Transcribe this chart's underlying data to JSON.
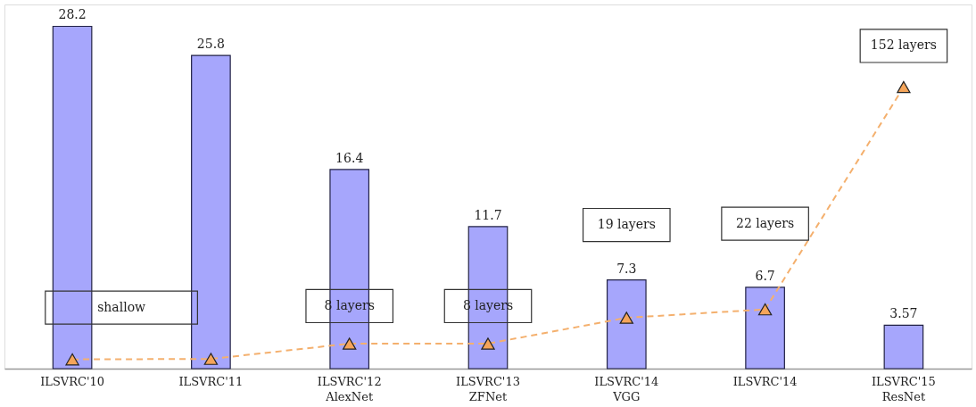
{
  "chart_data": {
    "type": "bar",
    "categories": [
      "ILSVRC'10",
      "ILSVRC'11",
      "ILSVRC'12\nAlexNet",
      "ILSVRC'13\nZFNet",
      "ILSVRC'14\nVGG",
      "ILSVRC'14",
      "ILSVRC'15\nResNet"
    ],
    "series": [
      {
        "color": "#a6a6fc",
        "values": [
          28.2,
          25.8,
          16.4,
          11.7,
          7.3,
          6.7,
          3.57
        ],
        "value_labels": [
          "28.2",
          "25.8",
          "16.4",
          "11.7",
          "7.3",
          "6.7",
          "3.57"
        ]
      },
      {
        "type": "line",
        "color": "#f4b06e",
        "marker": "triangle",
        "line_style": "dashed",
        "values": [
          0.76,
          0.8,
          2.06,
          2.06,
          4.19,
          4.88,
          23.2
        ]
      }
    ],
    "annotations": [
      "shallow",
      "8 layers",
      "8 layers",
      "19 layers",
      "22 layers",
      "152 layers"
    ],
    "ylim": [
      0,
      30
    ],
    "tick_labels": "x",
    "grid": false
  }
}
